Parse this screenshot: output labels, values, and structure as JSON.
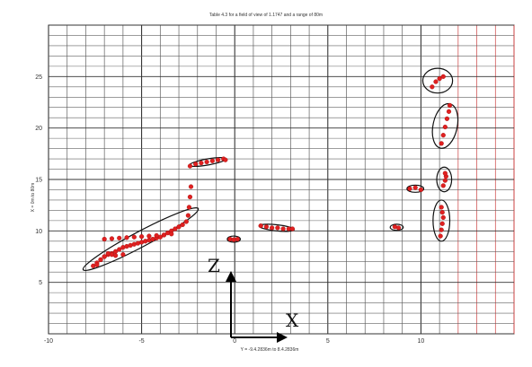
{
  "chart_data": {
    "type": "scatter",
    "title": "Table 4.3 for a field of view of 1.1747 and a range of 80m",
    "xlabel": "Y = -9.4.2836m to 8.4.2836m",
    "ylabel": "X = 0m to 80m",
    "xlim": [
      -10,
      15
    ],
    "ylim": [
      0,
      30
    ],
    "xticks": [
      "-10",
      "-5",
      "0",
      "5",
      "10"
    ],
    "yticks": [
      "5",
      "10",
      "15",
      "20",
      "25"
    ],
    "grid": true,
    "colors": {
      "points": "#e02020",
      "ellipse": "#111111",
      "grid_minor": "#606060",
      "grid_red": "#cc4040"
    },
    "annotations": {
      "z_label": "Z",
      "x_label": "X"
    },
    "series": [
      {
        "x": [
          -7.6,
          -7.4,
          -7.2,
          -7.0,
          -6.8,
          -6.6,
          -6.4,
          -6.2,
          -6.0,
          -5.8,
          -5.6,
          -5.4,
          -5.2,
          -5.0,
          -4.8,
          -4.6,
          -4.4,
          -4.2,
          -4.0,
          -3.8,
          -3.6,
          -3.4,
          -3.2,
          -3.0,
          -2.8,
          -2.6,
          -2.5,
          -2.45,
          -2.4,
          -2.35
        ],
        "y": [
          6.6,
          6.9,
          7.2,
          7.5,
          7.7,
          7.8,
          8.0,
          8.2,
          8.4,
          8.5,
          8.6,
          8.7,
          8.8,
          8.9,
          9.0,
          9.1,
          9.2,
          9.3,
          9.4,
          9.6,
          9.8,
          10.0,
          10.2,
          10.4,
          10.6,
          10.9,
          11.5,
          12.3,
          13.3,
          14.3
        ]
      },
      {
        "x": [
          -7.0,
          -6.6,
          -6.2,
          -5.8,
          -5.4,
          -5.0,
          -4.6,
          -4.2,
          -3.8,
          -3.4
        ],
        "y": [
          9.2,
          9.25,
          9.3,
          9.35,
          9.4,
          9.45,
          9.5,
          9.55,
          9.6,
          9.7
        ]
      },
      {
        "x": [
          -7.4,
          -7.2,
          -7.0,
          -6.8,
          -6.6,
          -6.4,
          -6.0
        ],
        "y": [
          6.7,
          7.2,
          7.5,
          7.8,
          7.7,
          7.6,
          7.7
        ]
      },
      {
        "x": [
          -2.4,
          -2.1,
          -1.8,
          -1.5,
          -1.2,
          -0.9,
          -0.6,
          -0.5
        ],
        "y": [
          16.3,
          16.5,
          16.6,
          16.7,
          16.8,
          16.9,
          17.0,
          16.9
        ]
      },
      {
        "x": [
          -0.25,
          -0.05,
          0.15
        ],
        "y": [
          9.2,
          9.15,
          9.2
        ]
      },
      {
        "x": [
          1.4,
          1.7,
          2.0,
          2.3,
          2.6,
          2.9,
          3.1
        ],
        "y": [
          10.5,
          10.4,
          10.3,
          10.3,
          10.2,
          10.2,
          10.2
        ]
      },
      {
        "x": [
          8.6,
          8.8
        ],
        "y": [
          10.4,
          10.3
        ]
      },
      {
        "x": [
          9.4,
          9.7,
          10.0
        ],
        "y": [
          14.1,
          14.2,
          14.0
        ]
      },
      {
        "x": [
          11.05,
          11.1,
          11.15,
          11.2,
          11.15,
          11.1
        ],
        "y": [
          9.5,
          10.1,
          10.7,
          11.3,
          11.8,
          12.3
        ]
      },
      {
        "x": [
          11.2,
          11.3,
          11.35,
          11.3
        ],
        "y": [
          14.4,
          14.9,
          15.3,
          15.6
        ]
      },
      {
        "x": [
          11.1,
          11.2,
          11.3,
          11.4,
          11.5,
          11.55
        ],
        "y": [
          18.5,
          19.3,
          20.1,
          20.9,
          21.6,
          22.2
        ]
      },
      {
        "x": [
          10.6,
          10.8,
          11.0,
          11.2
        ],
        "y": [
          24.0,
          24.5,
          24.8,
          25.0
        ]
      }
    ],
    "ellipses": [
      {
        "cx": -5.05,
        "cy": 9.2,
        "rx": 3.5,
        "ry": 0.75,
        "angle": 28
      },
      {
        "cx": -1.45,
        "cy": 16.7,
        "rx": 1.0,
        "ry": 0.3,
        "angle": 10
      },
      {
        "cx": -0.05,
        "cy": 9.2,
        "rx": 0.35,
        "ry": 0.3,
        "angle": 0
      },
      {
        "cx": 2.25,
        "cy": 10.3,
        "rx": 0.95,
        "ry": 0.3,
        "angle": -6
      },
      {
        "cx": 8.7,
        "cy": 10.35,
        "rx": 0.35,
        "ry": 0.3,
        "angle": 0
      },
      {
        "cx": 9.7,
        "cy": 14.1,
        "rx": 0.45,
        "ry": 0.35,
        "angle": 0
      },
      {
        "cx": 11.1,
        "cy": 11.0,
        "rx": 0.45,
        "ry": 2.0,
        "angle": 0
      },
      {
        "cx": 11.25,
        "cy": 15.0,
        "rx": 0.4,
        "ry": 1.2,
        "angle": 0
      },
      {
        "cx": 11.3,
        "cy": 20.2,
        "rx": 0.65,
        "ry": 2.2,
        "angle": -12
      },
      {
        "cx": 10.9,
        "cy": 24.6,
        "rx": 0.8,
        "ry": 1.2,
        "angle": 0
      }
    ]
  }
}
